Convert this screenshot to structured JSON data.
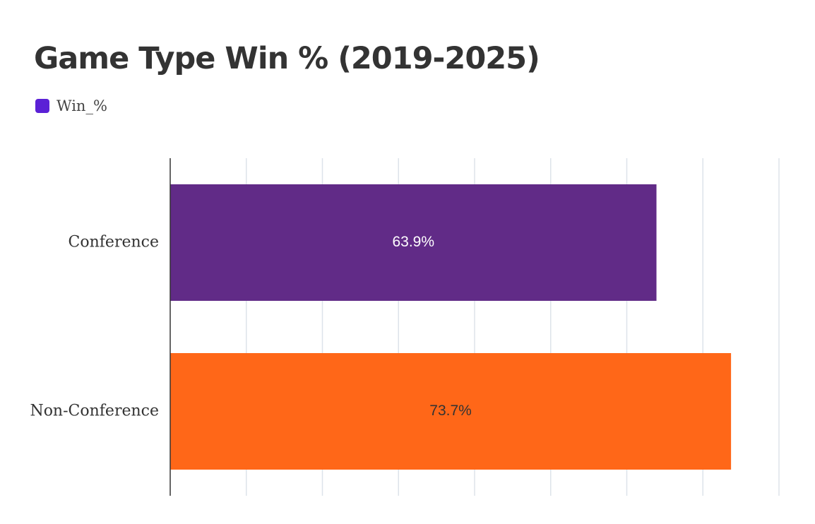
{
  "chart_data": {
    "type": "bar",
    "orientation": "horizontal",
    "title": "Game Type Win % (2019-2025)",
    "legend": {
      "label": "Win_%",
      "color": "#5b21d6",
      "placement": "top-left"
    },
    "categories": [
      "Conference",
      "Non-Conference"
    ],
    "values": [
      63.9,
      73.7
    ],
    "data_labels": [
      "63.9%",
      "73.7%"
    ],
    "bar_colors": [
      "#612b87",
      "#ff6718"
    ],
    "label_colors": [
      "#ffffff",
      "#333333"
    ],
    "xlim": [
      0,
      80
    ],
    "grid": true,
    "gridline_color": "#dde3ea",
    "axis_color": "#333333"
  }
}
